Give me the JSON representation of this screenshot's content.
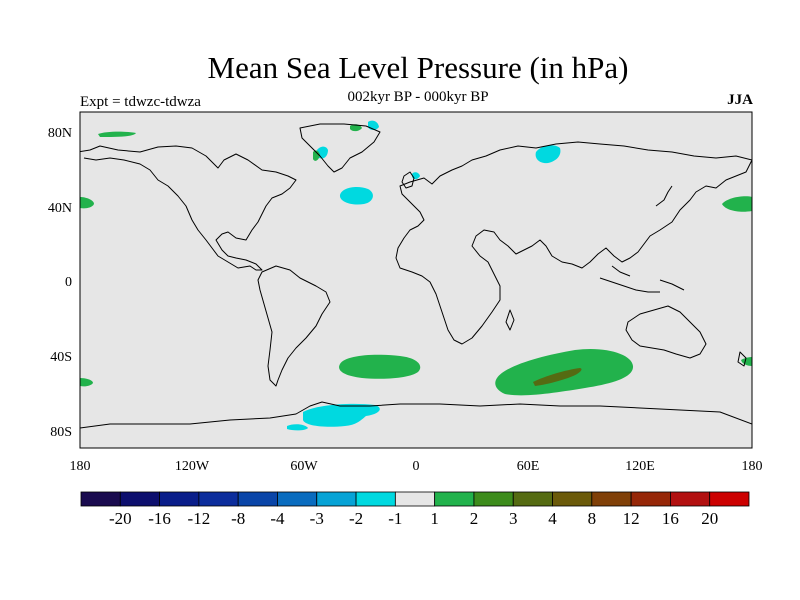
{
  "header": {
    "title": "Mean Sea Level Pressure (in hPa)",
    "subtitle": "002kyr BP - 000kyr BP",
    "experiment": "Expt = tdwzc-tdwza",
    "season": "JJA"
  },
  "map": {
    "projection": "cylindrical-equidistant",
    "lon_range": [
      -180,
      180
    ],
    "lat_range": [
      -90,
      90
    ],
    "x_ticks": [
      "180",
      "120W",
      "60W",
      "0",
      "60E",
      "120E",
      "180"
    ],
    "y_ticks": [
      "80N",
      "40N",
      "0",
      "40S",
      "80S"
    ],
    "background_color": "#e6e6e6",
    "coastline_color": "#000000"
  },
  "anomaly_regions": [
    {
      "name": "south-atlantic-positive",
      "level": "1 to 2",
      "color": "#22b24c",
      "center_lon": -30,
      "center_lat": -46
    },
    {
      "name": "south-indian-positive",
      "level": "1 to 2",
      "color": "#22b24c",
      "center_lon": 72,
      "center_lat": -49
    },
    {
      "name": "south-indian-core",
      "level": "3 to 4",
      "color": "#556b12",
      "center_lon": 78,
      "center_lat": -51
    },
    {
      "name": "weddell-negative",
      "level": "-2 to -1",
      "color": "#00d9e0",
      "center_lon": -45,
      "center_lat": -71
    },
    {
      "name": "north-atlantic-negative",
      "level": "-2 to -1",
      "color": "#00d9e0",
      "center_lon": -33,
      "center_lat": 44
    },
    {
      "name": "north-pacific-east-positive",
      "level": "1 to 2",
      "color": "#22b24c",
      "center_lon": 172,
      "center_lat": 40
    },
    {
      "name": "north-pacific-west-positive",
      "level": "1 to 2",
      "color": "#22b24c",
      "center_lon": -178,
      "center_lat": 42
    },
    {
      "name": "arctic-positive",
      "level": "1 to 2",
      "color": "#22b24c",
      "center_lon": -145,
      "center_lat": 78
    },
    {
      "name": "greenland-negative",
      "level": "-2 to -1",
      "color": "#00d9e0",
      "center_lon": -30,
      "center_lat": 80
    },
    {
      "name": "barents-negative",
      "level": "-2 to -1",
      "color": "#00d9e0",
      "center_lon": 60,
      "center_lat": 68
    },
    {
      "name": "southwest-atlantic-positive",
      "level": "1 to 2",
      "color": "#22b24c",
      "center_lon": -178,
      "center_lat": -55
    }
  ],
  "colorbar": {
    "colors": [
      "#1a0b4f",
      "#0d0f6e",
      "#0a1e8a",
      "#0c2d9c",
      "#0a45a8",
      "#0a6cbf",
      "#07a3d6",
      "#00d9e0",
      "#e6e6e6",
      "#22b24c",
      "#3d8c1c",
      "#556b12",
      "#6b5a0a",
      "#804008",
      "#962708",
      "#b21010",
      "#cc0000"
    ],
    "labels": [
      "-20",
      "-16",
      "-12",
      "-8",
      "-4",
      "-3",
      "-2",
      "-1",
      "1",
      "2",
      "3",
      "4",
      "8",
      "12",
      "16",
      "20"
    ]
  }
}
